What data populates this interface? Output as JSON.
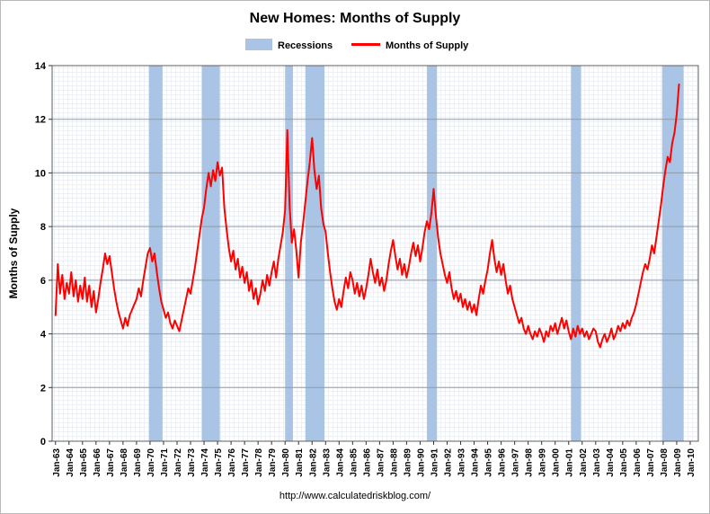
{
  "title": "New Homes: Months of Supply",
  "footer": "http://www.calculatedriskblog.com/",
  "legend": [
    {
      "label": "Recessions",
      "type": "band"
    },
    {
      "label": "Months of Supply",
      "type": "line"
    }
  ],
  "chart_data": {
    "type": "line",
    "title": "New Homes: Months of Supply",
    "xlabel": "",
    "ylabel": "Months of Supply",
    "ylim": [
      0,
      14
    ],
    "xlim": [
      1962.75,
      2010.6
    ],
    "y_ticks": [
      0,
      2,
      4,
      6,
      8,
      10,
      12,
      14
    ],
    "x_ticks": [
      1963,
      1964,
      1965,
      1966,
      1967,
      1968,
      1969,
      1970,
      1971,
      1972,
      1973,
      1974,
      1975,
      1976,
      1977,
      1978,
      1979,
      1980,
      1981,
      1982,
      1983,
      1984,
      1985,
      1986,
      1987,
      1988,
      1989,
      1990,
      1991,
      1992,
      1993,
      1994,
      1995,
      1996,
      1997,
      1998,
      1999,
      2000,
      2001,
      2002,
      2003,
      2004,
      2005,
      2006,
      2007,
      2008,
      2009,
      2010
    ],
    "x_tick_labels": [
      "Jan-63",
      "Jan-64",
      "Jan-65",
      "Jan-66",
      "Jan-67",
      "Jan-68",
      "Jan-69",
      "Jan-70",
      "Jan-71",
      "Jan-72",
      "Jan-73",
      "Jan-74",
      "Jan-75",
      "Jan-76",
      "Jan-77",
      "Jan-78",
      "Jan-79",
      "Jan-80",
      "Jan-81",
      "Jan-82",
      "Jan-83",
      "Jan-84",
      "Jan-85",
      "Jan-86",
      "Jan-87",
      "Jan-88",
      "Jan-89",
      "Jan-90",
      "Jan-91",
      "Jan-92",
      "Jan-93",
      "Jan-94",
      "Jan-95",
      "Jan-96",
      "Jan-97",
      "Jan-98",
      "Jan-99",
      "Jan-00",
      "Jan-01",
      "Jan-02",
      "Jan-03",
      "Jan-04",
      "Jan-05",
      "Jan-06",
      "Jan-07",
      "Jan-08",
      "Jan-09",
      "Jan-10"
    ],
    "grid": true,
    "legend_position": "top",
    "recession_color": "#a9c4e4",
    "recessions": [
      {
        "start": 1969.92,
        "end": 1970.92
      },
      {
        "start": 1973.83,
        "end": 1975.17
      },
      {
        "start": 1980.0,
        "end": 1980.58
      },
      {
        "start": 1981.5,
        "end": 1982.92
      },
      {
        "start": 1990.5,
        "end": 1991.25
      },
      {
        "start": 2001.17,
        "end": 2001.92
      },
      {
        "start": 2007.92,
        "end": 2009.5
      }
    ],
    "series": [
      {
        "name": "Months of Supply",
        "color": "#ff0000",
        "start_year": 1963,
        "points_per_year": 6,
        "values": [
          4.7,
          6.6,
          5.5,
          6.2,
          5.3,
          5.9,
          5.5,
          6.3,
          5.4,
          6.0,
          5.2,
          5.8,
          5.3,
          6.1,
          5.2,
          5.8,
          5.0,
          5.6,
          4.8,
          5.3,
          5.9,
          6.4,
          7.0,
          6.6,
          6.9,
          6.3,
          5.7,
          5.2,
          4.8,
          4.5,
          4.2,
          4.6,
          4.3,
          4.7,
          4.9,
          5.1,
          5.3,
          5.7,
          5.4,
          6.0,
          6.5,
          7.0,
          7.2,
          6.7,
          7.0,
          6.3,
          5.7,
          5.2,
          4.9,
          4.6,
          4.8,
          4.4,
          4.2,
          4.5,
          4.3,
          4.1,
          4.5,
          4.9,
          5.3,
          5.7,
          5.5,
          6.0,
          6.5,
          7.1,
          7.7,
          8.3,
          8.7,
          9.4,
          10.0,
          9.5,
          10.1,
          9.7,
          10.4,
          9.9,
          10.2,
          8.7,
          7.9,
          7.2,
          6.7,
          7.1,
          6.4,
          6.8,
          6.1,
          6.5,
          5.9,
          6.3,
          5.6,
          6.0,
          5.3,
          5.7,
          5.1,
          5.5,
          6.0,
          5.6,
          6.2,
          5.8,
          6.3,
          6.7,
          6.1,
          6.8,
          7.3,
          7.8,
          8.6,
          11.6,
          8.8,
          7.4,
          7.9,
          7.1,
          6.1,
          7.4,
          8.1,
          8.9,
          9.7,
          10.4,
          11.3,
          10.1,
          9.4,
          9.9,
          8.7,
          8.1,
          7.8,
          7.0,
          6.3,
          5.7,
          5.2,
          4.9,
          5.3,
          5.0,
          5.6,
          6.1,
          5.7,
          6.3,
          6.0,
          5.5,
          5.9,
          5.4,
          5.8,
          5.3,
          5.7,
          6.2,
          6.8,
          6.3,
          5.9,
          6.4,
          5.8,
          6.1,
          5.6,
          6.0,
          6.6,
          7.1,
          7.5,
          6.9,
          6.4,
          6.8,
          6.2,
          6.6,
          6.1,
          6.5,
          7.0,
          7.4,
          6.9,
          7.3,
          6.7,
          7.2,
          7.8,
          8.2,
          7.9,
          8.5,
          9.4,
          8.4,
          7.6,
          7.0,
          6.6,
          6.2,
          5.9,
          6.3,
          5.7,
          5.3,
          5.6,
          5.2,
          5.5,
          5.0,
          5.3,
          4.9,
          5.2,
          4.8,
          5.1,
          4.7,
          5.3,
          5.8,
          5.5,
          6.0,
          6.4,
          7.0,
          7.5,
          6.8,
          6.3,
          6.7,
          6.2,
          6.6,
          6.0,
          5.5,
          5.8,
          5.3,
          5.0,
          4.7,
          4.4,
          4.6,
          4.2,
          4.0,
          4.3,
          4.0,
          3.8,
          4.1,
          3.9,
          4.2,
          4.0,
          3.7,
          4.1,
          3.9,
          4.3,
          4.1,
          4.4,
          4.0,
          4.3,
          4.6,
          4.2,
          4.5,
          4.1,
          3.8,
          4.2,
          3.9,
          4.3,
          4.0,
          4.2,
          3.9,
          4.1,
          3.8,
          4.0,
          4.2,
          4.1,
          3.7,
          3.5,
          3.8,
          4.0,
          3.7,
          3.9,
          4.2,
          3.8,
          4.0,
          4.3,
          4.1,
          4.4,
          4.2,
          4.5,
          4.3,
          4.6,
          4.8,
          5.1,
          5.5,
          5.9,
          6.3,
          6.6,
          6.4,
          6.8,
          7.3,
          7.0,
          7.6,
          8.2,
          8.8,
          9.5,
          10.1,
          10.6,
          10.4,
          11.1,
          11.5,
          12.2,
          13.3
        ]
      }
    ]
  }
}
